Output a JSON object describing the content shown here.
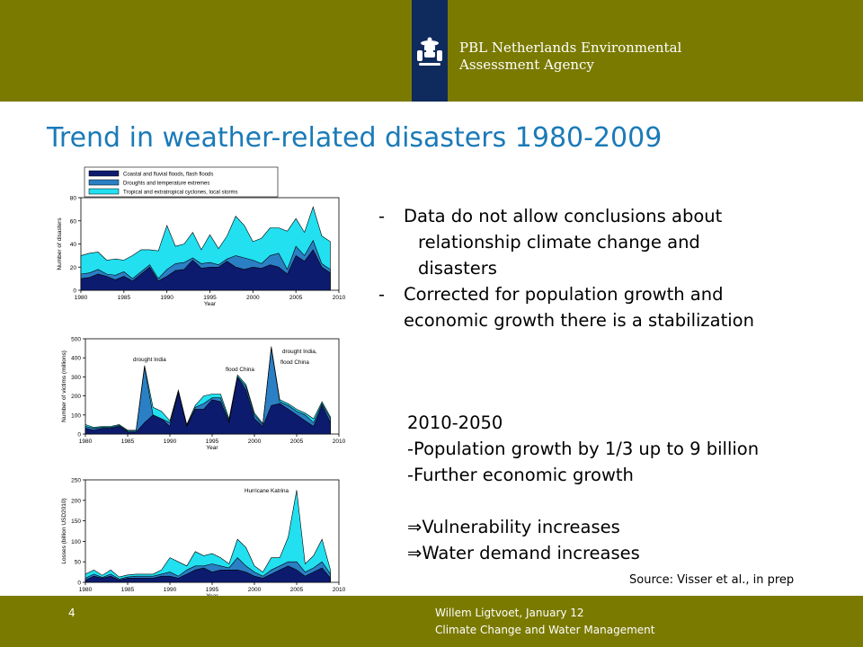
{
  "header": {
    "org_line1": "PBL Netherlands Environmental",
    "org_line2": "Assessment Agency"
  },
  "slide": {
    "title": "Trend in weather-related disasters 1980-2009",
    "bullets": [
      {
        "dash": "-",
        "lines": [
          "Data do not allow conclusions about",
          "relationship  climate change and",
          "disasters"
        ]
      },
      {
        "dash": "-",
        "lines": [
          "Corrected for population growth and",
          "economic growth there is a stabilization"
        ]
      }
    ],
    "future": {
      "period": "2010-2050",
      "line1": "-Population growth by 1/3 up to 9 billion",
      "line2": "-Further economic growth",
      "arrow": "⇒",
      "conclusion1": "Vulnerability increases",
      "conclusion2": "Water demand increases"
    },
    "source": "Source: Visser et al., in prep"
  },
  "footer": {
    "page_number": "4",
    "author": "Willem Ligtvoet, January 12",
    "topic": "Climate Change and Water Management"
  },
  "colors": {
    "bar": "#7a7a00",
    "logo": "#0f2a5c",
    "title": "#1a7ab8",
    "series": [
      "#0d1b6e",
      "#2b7fc4",
      "#22e0f0"
    ]
  },
  "chart_data": [
    {
      "type": "area",
      "stacked": true,
      "title": "",
      "xlabel": "Year",
      "ylabel": "Number of disasters",
      "xlim": [
        1980,
        2010
      ],
      "ylim": [
        0,
        80
      ],
      "x_ticks": [
        1980,
        1985,
        1990,
        1995,
        2000,
        2005,
        2010
      ],
      "y_ticks": [
        0,
        20,
        40,
        60,
        80
      ],
      "x": [
        1980,
        1981,
        1982,
        1983,
        1984,
        1985,
        1986,
        1987,
        1988,
        1989,
        1990,
        1991,
        1992,
        1993,
        1994,
        1995,
        1996,
        1997,
        1998,
        1999,
        2000,
        2001,
        2002,
        2003,
        2004,
        2005,
        2006,
        2007,
        2008,
        2009
      ],
      "series": [
        {
          "name": "Coastal and fluvial floods, flash floods",
          "values": [
            10,
            11,
            14,
            12,
            9,
            12,
            8,
            14,
            20,
            8,
            12,
            17,
            18,
            26,
            19,
            20,
            20,
            25,
            20,
            18,
            20,
            19,
            22,
            20,
            14,
            30,
            25,
            35,
            20,
            15
          ]
        },
        {
          "name": "Droughts and temperature extremes",
          "values": [
            4,
            4,
            4,
            2,
            4,
            4,
            2,
            2,
            2,
            2,
            6,
            6,
            6,
            2,
            4,
            4,
            2,
            2,
            10,
            10,
            6,
            4,
            8,
            12,
            4,
            8,
            5,
            8,
            3,
            3
          ]
        },
        {
          "name": "Tropical and extratropical cyclones, local storms",
          "values": [
            16,
            17,
            15,
            12,
            14,
            10,
            20,
            19,
            13,
            24,
            38,
            15,
            16,
            22,
            12,
            24,
            14,
            20,
            34,
            28,
            16,
            22,
            24,
            22,
            33,
            24,
            20,
            29,
            24,
            24
          ]
        }
      ],
      "legend_position": "top"
    },
    {
      "type": "area",
      "stacked": true,
      "title": "",
      "xlabel": "Year",
      "ylabel": "Number of victims (millions)",
      "xlim": [
        1980,
        2010
      ],
      "ylim": [
        0,
        500
      ],
      "x_ticks": [
        1980,
        1985,
        1990,
        1995,
        2000,
        2005,
        2010
      ],
      "y_ticks": [
        0,
        100,
        200,
        300,
        400,
        500
      ],
      "x": [
        1980,
        1981,
        1982,
        1983,
        1984,
        1985,
        1986,
        1987,
        1988,
        1989,
        1990,
        1991,
        1992,
        1993,
        1994,
        1995,
        1996,
        1997,
        1998,
        1999,
        2000,
        2001,
        2002,
        2003,
        2004,
        2005,
        2006,
        2007,
        2008,
        2009
      ],
      "series": [
        {
          "values": [
            30,
            20,
            30,
            30,
            40,
            10,
            10,
            60,
            100,
            80,
            40,
            220,
            40,
            130,
            130,
            180,
            170,
            60,
            300,
            230,
            80,
            40,
            150,
            160,
            130,
            100,
            70,
            40,
            150,
            60
          ]
        },
        {
          "values": [
            10,
            10,
            5,
            5,
            5,
            5,
            5,
            290,
            0,
            0,
            20,
            5,
            5,
            10,
            30,
            10,
            20,
            10,
            0,
            20,
            20,
            10,
            300,
            10,
            20,
            20,
            30,
            20,
            10,
            20
          ]
        },
        {
          "values": [
            10,
            5,
            5,
            5,
            5,
            5,
            5,
            10,
            40,
            40,
            10,
            5,
            5,
            10,
            40,
            20,
            20,
            10,
            10,
            10,
            10,
            5,
            10,
            10,
            10,
            10,
            10,
            20,
            10,
            10
          ]
        }
      ],
      "annotations": [
        "drought India",
        "flood China",
        "drought India,",
        "flood China"
      ]
    },
    {
      "type": "area",
      "stacked": true,
      "title": "",
      "xlabel": "Year",
      "ylabel": "Losses (billion USD2010)",
      "xlim": [
        1980,
        2010
      ],
      "ylim": [
        0,
        250
      ],
      "x_ticks": [
        1980,
        1985,
        1990,
        1995,
        2000,
        2005,
        2010
      ],
      "y_ticks": [
        0,
        50,
        100,
        150,
        200,
        250
      ],
      "x": [
        1980,
        1981,
        1982,
        1983,
        1984,
        1985,
        1986,
        1987,
        1988,
        1989,
        1990,
        1991,
        1992,
        1993,
        1994,
        1995,
        1996,
        1997,
        1998,
        1999,
        2000,
        2001,
        2002,
        2003,
        2004,
        2005,
        2006,
        2007,
        2008,
        2009
      ],
      "series": [
        {
          "values": [
            5,
            15,
            10,
            15,
            5,
            10,
            10,
            10,
            10,
            15,
            15,
            10,
            20,
            30,
            35,
            25,
            30,
            30,
            30,
            25,
            15,
            10,
            20,
            30,
            40,
            30,
            15,
            25,
            35,
            10
          ]
        },
        {
          "values": [
            5,
            5,
            2,
            5,
            3,
            3,
            5,
            5,
            5,
            5,
            10,
            5,
            10,
            10,
            5,
            20,
            10,
            5,
            30,
            15,
            10,
            5,
            10,
            10,
            10,
            20,
            10,
            10,
            15,
            10
          ]
        },
        {
          "values": [
            10,
            10,
            5,
            10,
            5,
            5,
            5,
            5,
            5,
            10,
            35,
            35,
            10,
            35,
            25,
            25,
            20,
            10,
            45,
            45,
            15,
            10,
            30,
            20,
            60,
            175,
            20,
            30,
            55,
            10
          ]
        }
      ],
      "annotations": [
        "Hurricane Katrina"
      ]
    }
  ]
}
